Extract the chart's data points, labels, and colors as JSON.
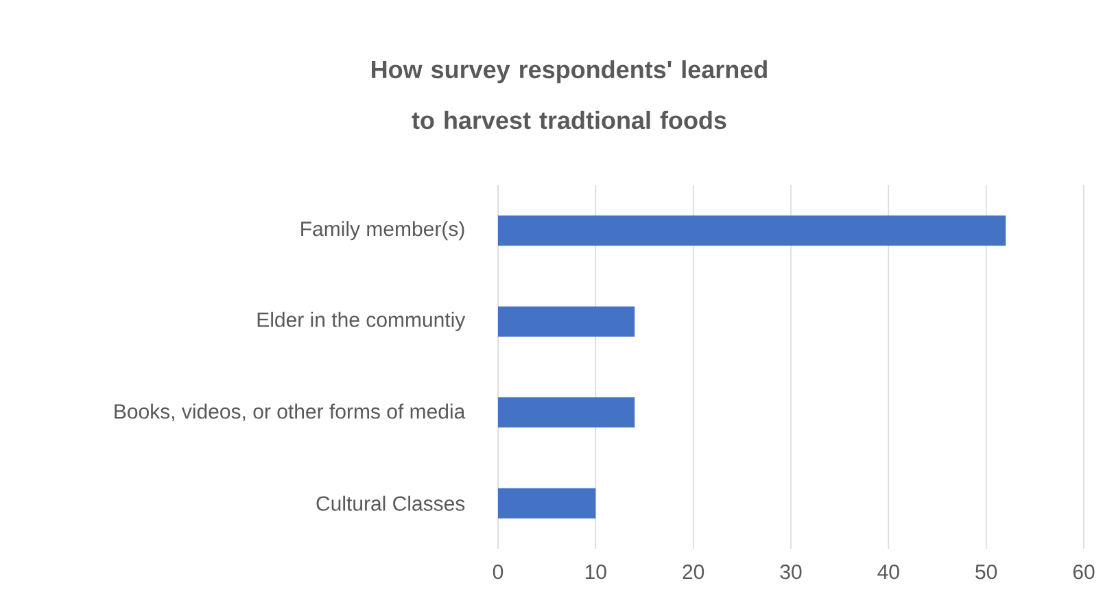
{
  "chart_data": {
    "type": "bar",
    "orientation": "horizontal",
    "title": "How survey respondents' learned to harvest tradtional foods",
    "categories": [
      "Family member(s)",
      "Elder in the communtiy",
      "Books, videos, or other forms of media",
      "Cultural Classes"
    ],
    "values": [
      52,
      14,
      14,
      10
    ],
    "color": "#4472c4",
    "xlim": [
      0,
      60
    ],
    "xticks": [
      0,
      10,
      20,
      30,
      40,
      50,
      60
    ],
    "grid": "x"
  }
}
